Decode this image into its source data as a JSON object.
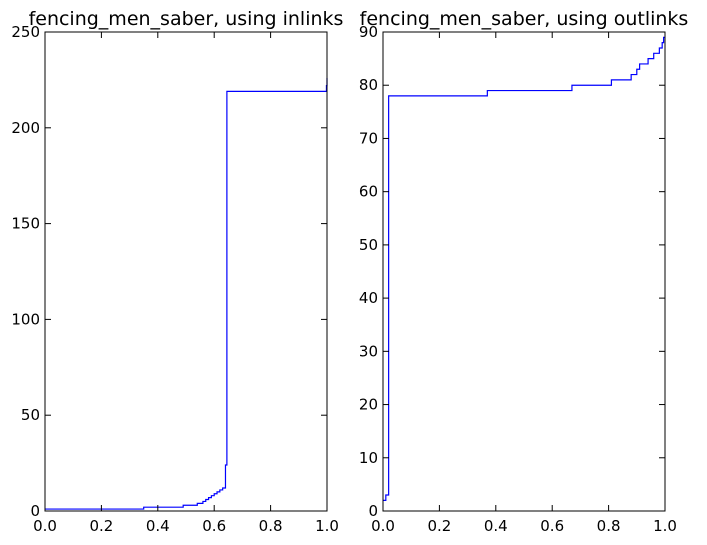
{
  "chart_data": [
    {
      "type": "line",
      "title": "fencing_men_saber, using inlinks",
      "xlabel": "",
      "ylabel": "",
      "xlim": [
        0.0,
        1.0
      ],
      "ylim": [
        0,
        250
      ],
      "x_ticks": [
        {
          "value": 0.0,
          "label": "0.0"
        },
        {
          "value": 0.2,
          "label": "0.2"
        },
        {
          "value": 0.4,
          "label": "0.4"
        },
        {
          "value": 0.6,
          "label": "0.6"
        },
        {
          "value": 0.8,
          "label": "0.8"
        },
        {
          "value": 1.0,
          "label": "1.0"
        }
      ],
      "y_ticks": [
        {
          "value": 0,
          "label": "0"
        },
        {
          "value": 50,
          "label": "50"
        },
        {
          "value": 100,
          "label": "100"
        },
        {
          "value": 150,
          "label": "150"
        },
        {
          "value": 200,
          "label": "200"
        },
        {
          "value": 250,
          "label": "250"
        }
      ],
      "grid": false,
      "color": "#0000ff",
      "series": [
        {
          "step": true,
          "x": [
            0.0,
            0.35,
            0.49,
            0.54,
            0.56,
            0.57,
            0.58,
            0.59,
            0.6,
            0.61,
            0.62,
            0.63,
            0.64,
            0.645,
            0.65,
            0.998,
            1.0
          ],
          "y": [
            1,
            2,
            3,
            4,
            5,
            6,
            7,
            8,
            9,
            10,
            11,
            12,
            24,
            219,
            219,
            222,
            226
          ]
        }
      ]
    },
    {
      "type": "line",
      "title": "fencing_men_saber, using outlinks",
      "xlabel": "",
      "ylabel": "",
      "xlim": [
        0.0,
        1.0
      ],
      "ylim": [
        0,
        90
      ],
      "x_ticks": [
        {
          "value": 0.0,
          "label": "0.0"
        },
        {
          "value": 0.2,
          "label": "0.2"
        },
        {
          "value": 0.4,
          "label": "0.4"
        },
        {
          "value": 0.6,
          "label": "0.6"
        },
        {
          "value": 0.8,
          "label": "0.8"
        },
        {
          "value": 1.0,
          "label": "1.0"
        }
      ],
      "y_ticks": [
        {
          "value": 0,
          "label": "0"
        },
        {
          "value": 10,
          "label": "10"
        },
        {
          "value": 20,
          "label": "20"
        },
        {
          "value": 30,
          "label": "30"
        },
        {
          "value": 40,
          "label": "40"
        },
        {
          "value": 50,
          "label": "50"
        },
        {
          "value": 60,
          "label": "60"
        },
        {
          "value": 70,
          "label": "70"
        },
        {
          "value": 80,
          "label": "80"
        },
        {
          "value": 90,
          "label": "90"
        }
      ],
      "grid": false,
      "color": "#0000ff",
      "series": [
        {
          "step": true,
          "x": [
            0.0,
            0.01,
            0.02,
            0.37,
            0.67,
            0.81,
            0.88,
            0.9,
            0.91,
            0.94,
            0.96,
            0.98,
            0.99,
            0.995,
            1.0
          ],
          "y": [
            2,
            3,
            78,
            79,
            80,
            81,
            82,
            83,
            84,
            85,
            86,
            87,
            88,
            89,
            89
          ]
        }
      ]
    }
  ]
}
